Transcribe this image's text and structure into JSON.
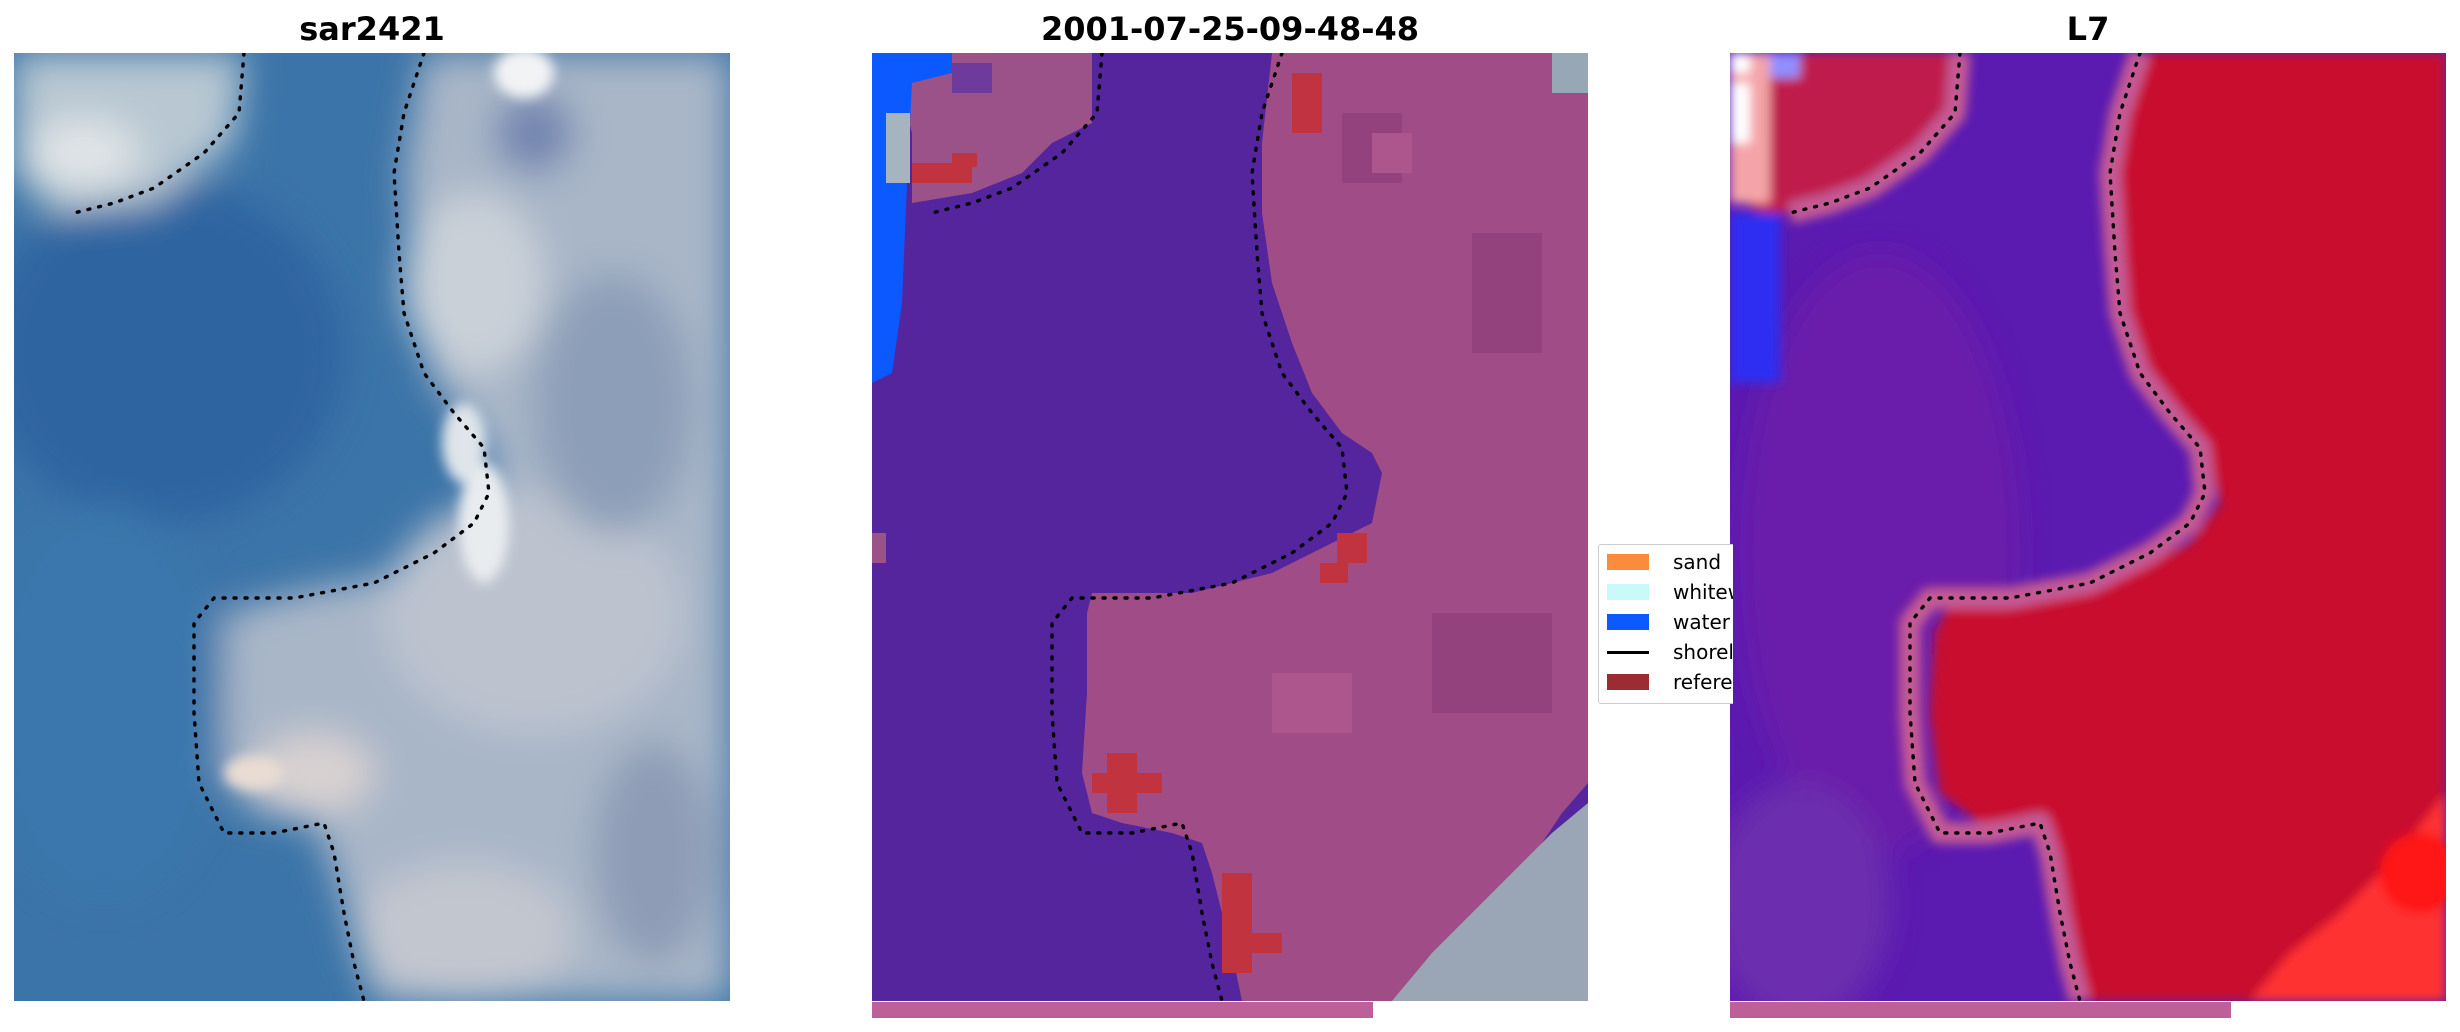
{
  "panels": [
    {
      "title": "sar2421"
    },
    {
      "title": "2001-07-25-09-48-48"
    },
    {
      "title": "L7"
    }
  ],
  "legend": {
    "items": [
      {
        "label": "sand",
        "color": "#fb8c3c",
        "kind": "patch"
      },
      {
        "label": "whitewater",
        "color": "#c8fafa",
        "kind": "patch"
      },
      {
        "label": "water",
        "color": "#0a5aff",
        "kind": "patch"
      },
      {
        "label": "shoreline",
        "color": "#000000",
        "kind": "line"
      },
      {
        "label": "reference",
        "color": "#9b2d32",
        "kind": "patch"
      }
    ]
  },
  "progress": {
    "fraction": 0.7
  },
  "colors": {
    "water_class": "#54259c",
    "land_class": "#a04c86",
    "water_index_low": "#5b1ab0",
    "water_index_high": "#c80a2e",
    "water_blue": "#0a5aff",
    "reference_red": "#c0333f",
    "progress_bar": "#bd5f98"
  }
}
